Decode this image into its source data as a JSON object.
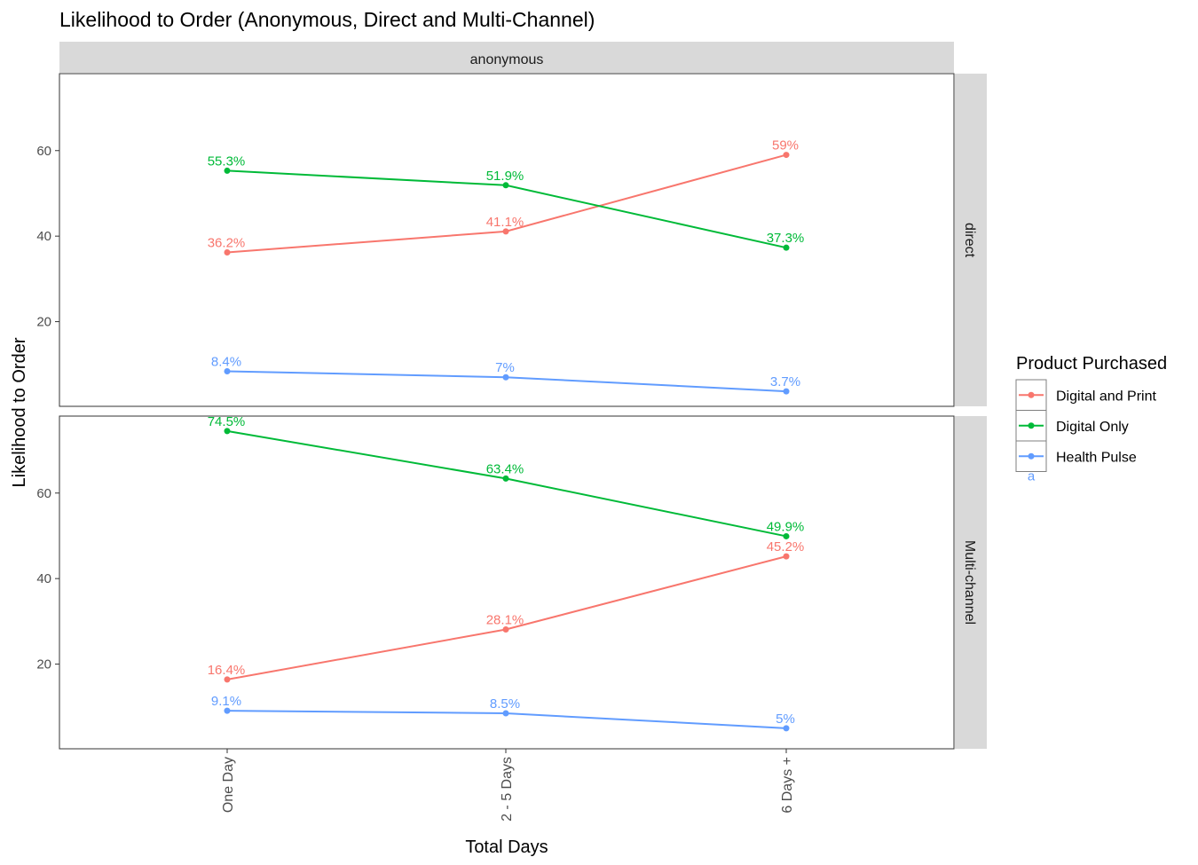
{
  "chart_data": {
    "type": "line",
    "title": "Likelihood to Order (Anonymous, Direct and Multi-Channel)",
    "xlabel": "Total Days",
    "ylabel": "Likelihood to Order",
    "categories": [
      "One Day",
      "2 - 5 Days",
      "6 Days +"
    ],
    "column_strip": "anonymous",
    "ylim": [
      0,
      78
    ],
    "yticks": [
      20,
      40,
      60
    ],
    "grid": false,
    "legend": {
      "title": "Product Purchased",
      "position": "right",
      "entries": [
        "Digital and Print",
        "Digital Only",
        "Health Pulse"
      ],
      "stray_label": "a"
    },
    "series_colors": {
      "Digital and Print": "#F8766D",
      "Digital Only": "#00BA38",
      "Health Pulse": "#619CFF"
    },
    "panels": [
      {
        "strip": "direct",
        "series": [
          {
            "name": "Digital and Print",
            "values": [
              36.2,
              41.1,
              59.0
            ],
            "labels": [
              "36.2%",
              "41.1%",
              "59%"
            ]
          },
          {
            "name": "Digital Only",
            "values": [
              55.3,
              51.9,
              37.3
            ],
            "labels": [
              "55.3%",
              "51.9%",
              "37.3%"
            ]
          },
          {
            "name": "Health Pulse",
            "values": [
              8.4,
              7.0,
              3.7
            ],
            "labels": [
              "8.4%",
              "7%",
              "3.7%"
            ]
          }
        ]
      },
      {
        "strip": "Multi-channel",
        "series": [
          {
            "name": "Digital and Print",
            "values": [
              16.4,
              28.1,
              45.2
            ],
            "labels": [
              "16.4%",
              "28.1%",
              "45.2%"
            ]
          },
          {
            "name": "Digital Only",
            "values": [
              74.5,
              63.4,
              49.9
            ],
            "labels": [
              "74.5%",
              "63.4%",
              "49.9%"
            ]
          },
          {
            "name": "Health Pulse",
            "values": [
              9.1,
              8.5,
              5.0
            ],
            "labels": [
              "9.1%",
              "8.5%",
              "5%"
            ]
          }
        ]
      }
    ]
  }
}
